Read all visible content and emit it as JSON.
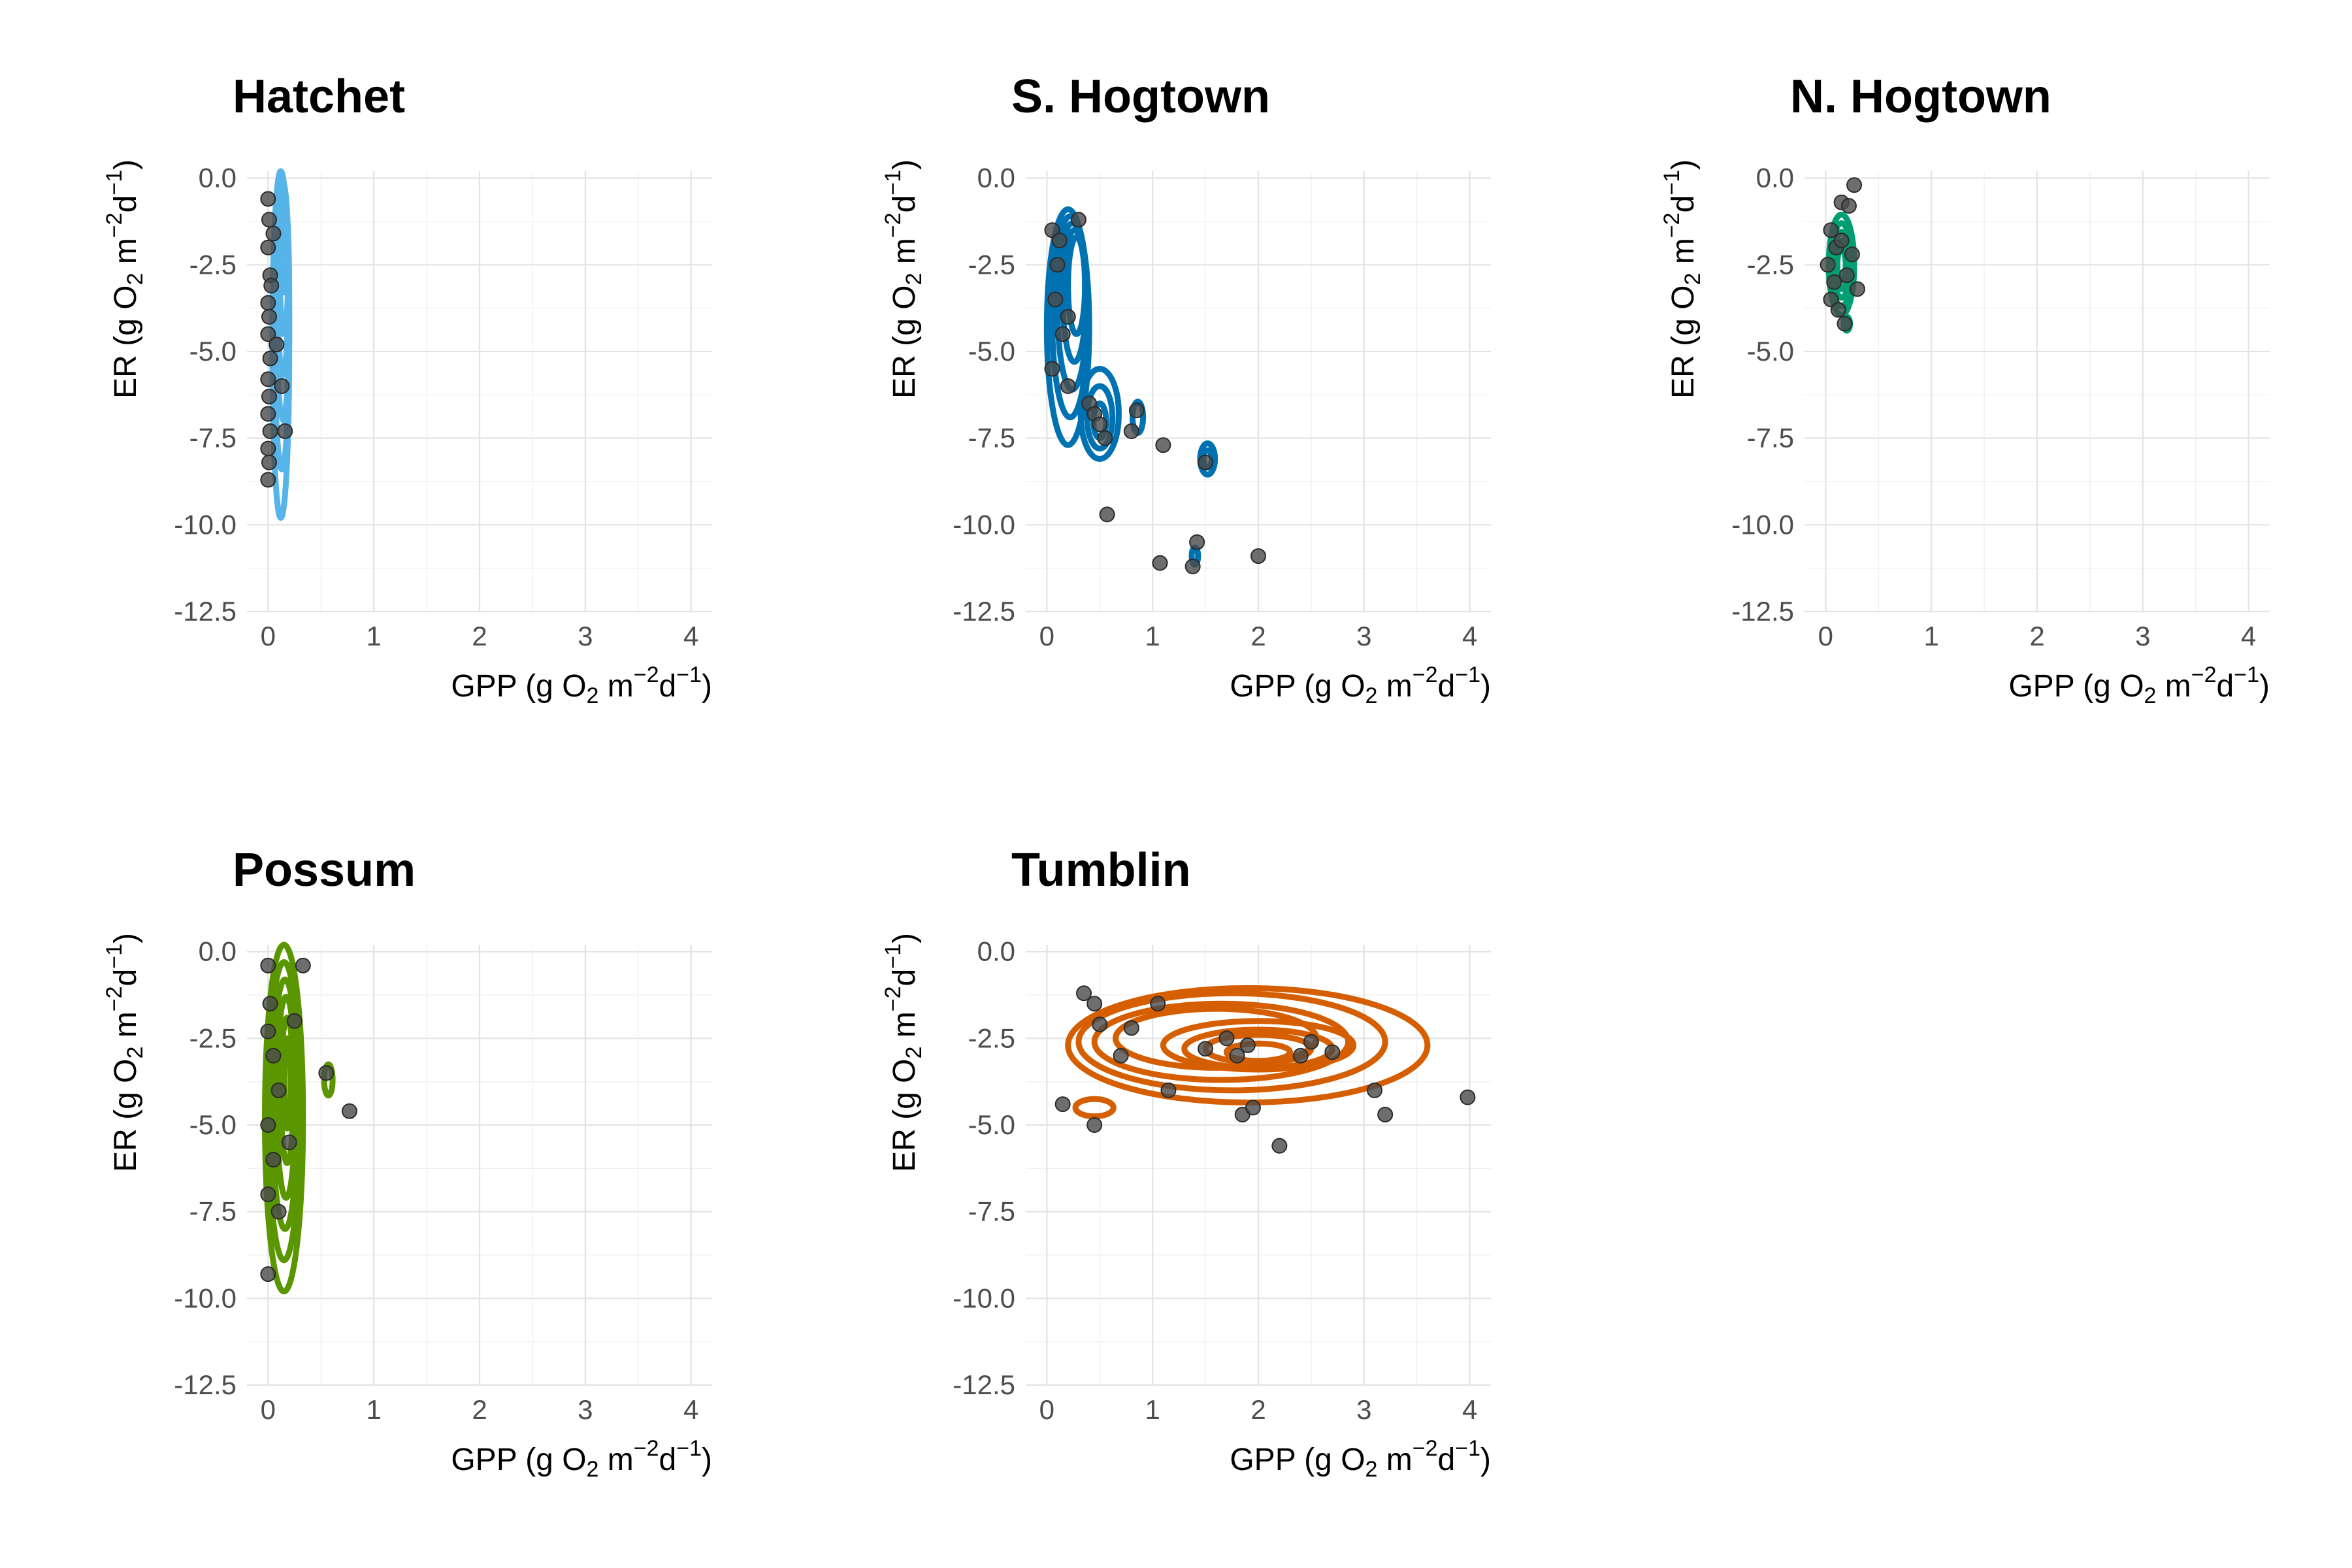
{
  "chart_data": [
    {
      "type": "scatter",
      "title": "Hatchet",
      "xlabel": {
        "main": "GPP (g O",
        "sub": "2",
        "unit": " m",
        "sup1": "−2",
        "mid": "d",
        "sup2": "−1",
        "end": ")"
      },
      "ylabel": {
        "main": "ER (g O",
        "sub": "2",
        "unit": " m",
        "sup1": "−2",
        "mid": "d",
        "sup2": "−1",
        "end": ")"
      },
      "xlim": [
        -0.2,
        4.2
      ],
      "ylim": [
        -12.5,
        0.2
      ],
      "xticks": [
        0,
        1,
        2,
        3,
        4
      ],
      "xticklabels": [
        "0",
        "1",
        "2",
        "3",
        "4"
      ],
      "yticks": [
        0,
        -2.5,
        -5,
        -7.5,
        -10,
        -12.5
      ],
      "yticklabels": [
        "0.0",
        "-2.5",
        "-5.0",
        "-7.5",
        "-10.0",
        "-12.5"
      ],
      "grid": true,
      "legend": "none",
      "color": "#56B4E9",
      "points": [
        [
          0.0,
          -0.6
        ],
        [
          0.01,
          -1.2
        ],
        [
          0.0,
          -2.0
        ],
        [
          0.02,
          -2.8
        ],
        [
          0.0,
          -3.6
        ],
        [
          0.01,
          -4.0
        ],
        [
          0.0,
          -4.5
        ],
        [
          0.02,
          -5.2
        ],
        [
          0.0,
          -5.8
        ],
        [
          0.01,
          -6.3
        ],
        [
          0.0,
          -6.8
        ],
        [
          0.02,
          -7.3
        ],
        [
          0.0,
          -7.8
        ],
        [
          0.01,
          -8.2
        ],
        [
          0.0,
          -8.7
        ],
        [
          0.03,
          -3.1
        ],
        [
          0.05,
          -1.6
        ],
        [
          0.16,
          -7.3
        ],
        [
          0.13,
          -6.0
        ],
        [
          0.08,
          -4.8
        ]
      ],
      "contours": [
        {
          "cx": 0.12,
          "cy": -4.8,
          "rx": 0.08,
          "ry": 5.0
        },
        {
          "cx": 0.13,
          "cy": -4.2,
          "rx": 0.07,
          "ry": 4.2
        },
        {
          "cx": 0.14,
          "cy": -3.6,
          "rx": 0.06,
          "ry": 3.4
        },
        {
          "cx": 0.14,
          "cy": -3.0,
          "rx": 0.05,
          "ry": 2.7
        },
        {
          "cx": 0.15,
          "cy": -2.4,
          "rx": 0.04,
          "ry": 2.1
        },
        {
          "cx": 0.15,
          "cy": -1.8,
          "rx": 0.03,
          "ry": 1.5
        },
        {
          "cx": 0.15,
          "cy": -1.2,
          "rx": 0.02,
          "ry": 1.0
        }
      ]
    },
    {
      "type": "scatter",
      "title": "S. Hogtown",
      "xlabel": {
        "main": "GPP (g O",
        "sub": "2",
        "unit": " m",
        "sup1": "−2",
        "mid": "d",
        "sup2": "−1",
        "end": ")"
      },
      "ylabel": {
        "main": "ER (g O",
        "sub": "2",
        "unit": " m",
        "sup1": "−2",
        "mid": "d",
        "sup2": "−1",
        "end": ")"
      },
      "xlim": [
        -0.2,
        4.2
      ],
      "ylim": [
        -12.5,
        0.2
      ],
      "xticks": [
        0,
        1,
        2,
        3,
        4
      ],
      "xticklabels": [
        "0",
        "1",
        "2",
        "3",
        "4"
      ],
      "yticks": [
        0,
        -2.5,
        -5,
        -7.5,
        -10,
        -12.5
      ],
      "yticklabels": [
        "0.0",
        "-2.5",
        "-5.0",
        "-7.5",
        "-10.0",
        "-12.5"
      ],
      "grid": true,
      "legend": "none",
      "color": "#0072B2",
      "points": [
        [
          0.05,
          -1.5
        ],
        [
          0.1,
          -2.5
        ],
        [
          0.08,
          -3.5
        ],
        [
          0.15,
          -4.5
        ],
        [
          0.05,
          -5.5
        ],
        [
          0.2,
          -6.0
        ],
        [
          0.3,
          -1.2
        ],
        [
          0.4,
          -6.5
        ],
        [
          0.45,
          -6.8
        ],
        [
          0.5,
          -7.1
        ],
        [
          0.55,
          -7.5
        ],
        [
          0.85,
          -6.7
        ],
        [
          0.8,
          -7.3
        ],
        [
          1.1,
          -7.7
        ],
        [
          1.5,
          -8.2
        ],
        [
          0.57,
          -9.7
        ],
        [
          1.07,
          -11.1
        ],
        [
          1.38,
          -11.2
        ],
        [
          1.42,
          -10.5
        ],
        [
          2.0,
          -10.9
        ],
        [
          0.12,
          -1.8
        ],
        [
          0.2,
          -4.0
        ]
      ],
      "contours": [
        {
          "cx": 0.2,
          "cy": -4.3,
          "rx": 0.2,
          "ry": 3.4
        },
        {
          "cx": 0.22,
          "cy": -4.0,
          "rx": 0.17,
          "ry": 2.9
        },
        {
          "cx": 0.24,
          "cy": -3.7,
          "rx": 0.14,
          "ry": 2.4
        },
        {
          "cx": 0.26,
          "cy": -3.4,
          "rx": 0.11,
          "ry": 1.9
        },
        {
          "cx": 0.28,
          "cy": -3.1,
          "rx": 0.08,
          "ry": 1.4
        },
        {
          "cx": 0.5,
          "cy": -6.8,
          "rx": 0.18,
          "ry": 1.3
        },
        {
          "cx": 0.5,
          "cy": -6.9,
          "rx": 0.12,
          "ry": 0.9
        },
        {
          "cx": 0.5,
          "cy": -7.0,
          "rx": 0.06,
          "ry": 0.5
        },
        {
          "cx": 0.86,
          "cy": -6.9,
          "rx": 0.05,
          "ry": 0.45
        },
        {
          "cx": 1.52,
          "cy": -8.1,
          "rx": 0.07,
          "ry": 0.45
        },
        {
          "cx": 1.52,
          "cy": -8.1,
          "rx": 0.04,
          "ry": 0.25
        },
        {
          "cx": 1.4,
          "cy": -10.9,
          "rx": 0.03,
          "ry": 0.25
        }
      ]
    },
    {
      "type": "scatter",
      "title": "N. Hogtown",
      "xlabel": {
        "main": "GPP (g O",
        "sub": "2",
        "unit": " m",
        "sup1": "−2",
        "mid": "d",
        "sup2": "−1",
        "end": ")"
      },
      "ylabel": {
        "main": "ER (g O",
        "sub": "2",
        "unit": " m",
        "sup1": "−2",
        "mid": "d",
        "sup2": "−1",
        "end": ")"
      },
      "xlim": [
        -0.2,
        4.2
      ],
      "ylim": [
        -12.5,
        0.2
      ],
      "xticks": [
        0,
        1,
        2,
        3,
        4
      ],
      "xticklabels": [
        "0",
        "1",
        "2",
        "3",
        "4"
      ],
      "yticks": [
        0,
        -2.5,
        -5,
        -7.5,
        -10,
        -12.5
      ],
      "yticklabels": [
        "0.0",
        "-2.5",
        "-5.0",
        "-7.5",
        "-10.0",
        "-12.5"
      ],
      "grid": true,
      "legend": "none",
      "color": "#009E73",
      "points": [
        [
          0.27,
          -0.2
        ],
        [
          0.15,
          -0.7
        ],
        [
          0.22,
          -0.8
        ],
        [
          0.05,
          -1.5
        ],
        [
          0.1,
          -2.0
        ],
        [
          0.02,
          -2.5
        ],
        [
          0.08,
          -3.0
        ],
        [
          0.3,
          -3.2
        ],
        [
          0.05,
          -3.5
        ],
        [
          0.15,
          -1.8
        ],
        [
          0.2,
          -2.8
        ],
        [
          0.25,
          -2.2
        ],
        [
          0.18,
          -4.2
        ],
        [
          0.12,
          -3.8
        ]
      ],
      "contours": [
        {
          "cx": 0.15,
          "cy": -2.5,
          "rx": 0.12,
          "ry": 1.45
        },
        {
          "cx": 0.15,
          "cy": -2.5,
          "rx": 0.1,
          "ry": 1.2
        },
        {
          "cx": 0.15,
          "cy": -2.5,
          "rx": 0.08,
          "ry": 0.95
        },
        {
          "cx": 0.15,
          "cy": -2.5,
          "rx": 0.06,
          "ry": 0.7
        },
        {
          "cx": 0.15,
          "cy": -2.5,
          "rx": 0.04,
          "ry": 0.45
        },
        {
          "cx": 0.2,
          "cy": -4.2,
          "rx": 0.03,
          "ry": 0.2
        }
      ]
    },
    {
      "type": "scatter",
      "title": "Possum",
      "xlabel": {
        "main": "GPP (g O",
        "sub": "2",
        "unit": " m",
        "sup1": "−2",
        "mid": "d",
        "sup2": "−1",
        "end": ")"
      },
      "ylabel": {
        "main": "ER (g O",
        "sub": "2",
        "unit": " m",
        "sup1": "−2",
        "mid": "d",
        "sup2": "−1",
        "end": ")"
      },
      "xlim": [
        -0.2,
        4.2
      ],
      "ylim": [
        -12.5,
        0.2
      ],
      "xticks": [
        0,
        1,
        2,
        3,
        4
      ],
      "xticklabels": [
        "0",
        "1",
        "2",
        "3",
        "4"
      ],
      "yticks": [
        0,
        -2.5,
        -5,
        -7.5,
        -10,
        -12.5
      ],
      "yticklabels": [
        "0.0",
        "-2.5",
        "-5.0",
        "-7.5",
        "-10.0",
        "-12.5"
      ],
      "grid": true,
      "legend": "none",
      "color": "#5A9600",
      "points": [
        [
          0.0,
          -0.4
        ],
        [
          0.33,
          -0.4
        ],
        [
          0.02,
          -1.5
        ],
        [
          0.0,
          -2.3
        ],
        [
          0.05,
          -3.0
        ],
        [
          0.1,
          -4.0
        ],
        [
          0.0,
          -5.0
        ],
        [
          0.05,
          -6.0
        ],
        [
          0.0,
          -7.0
        ],
        [
          0.1,
          -7.5
        ],
        [
          0.0,
          -9.3
        ],
        [
          0.2,
          -5.5
        ],
        [
          0.77,
          -4.6
        ],
        [
          0.55,
          -3.5
        ],
        [
          0.25,
          -2.0
        ]
      ],
      "contours": [
        {
          "cx": 0.15,
          "cy": -4.8,
          "rx": 0.18,
          "ry": 5.0
        },
        {
          "cx": 0.15,
          "cy": -4.6,
          "rx": 0.15,
          "ry": 4.3
        },
        {
          "cx": 0.16,
          "cy": -4.4,
          "rx": 0.12,
          "ry": 3.6
        },
        {
          "cx": 0.17,
          "cy": -4.2,
          "rx": 0.09,
          "ry": 2.9
        },
        {
          "cx": 0.18,
          "cy": -4.0,
          "rx": 0.06,
          "ry": 2.1
        },
        {
          "cx": 0.18,
          "cy": -3.8,
          "rx": 0.03,
          "ry": 1.3
        },
        {
          "cx": 0.57,
          "cy": -3.7,
          "rx": 0.04,
          "ry": 0.45
        }
      ]
    },
    {
      "type": "scatter",
      "title": "Tumblin",
      "xlabel": {
        "main": "GPP (g O",
        "sub": "2",
        "unit": " m",
        "sup1": "−2",
        "mid": "d",
        "sup2": "−1",
        "end": ")"
      },
      "ylabel": {
        "main": "ER (g O",
        "sub": "2",
        "unit": " m",
        "sup1": "−2",
        "mid": "d",
        "sup2": "−1",
        "end": ")"
      },
      "xlim": [
        -0.2,
        4.2
      ],
      "ylim": [
        -12.5,
        0.2
      ],
      "xticks": [
        0,
        1,
        2,
        3,
        4
      ],
      "xticklabels": [
        "0",
        "1",
        "2",
        "3",
        "4"
      ],
      "yticks": [
        0,
        -2.5,
        -5,
        -7.5,
        -10,
        -12.5
      ],
      "yticklabels": [
        "0.0",
        "-2.5",
        "-5.0",
        "-7.5",
        "-10.0",
        "-12.5"
      ],
      "grid": true,
      "legend": "none",
      "color": "#D55E00",
      "points": [
        [
          0.15,
          -4.4
        ],
        [
          0.35,
          -1.2
        ],
        [
          0.45,
          -1.5
        ],
        [
          0.5,
          -2.1
        ],
        [
          0.45,
          -5.0
        ],
        [
          0.8,
          -2.2
        ],
        [
          0.7,
          -3.0
        ],
        [
          1.05,
          -1.5
        ],
        [
          1.15,
          -4.0
        ],
        [
          1.5,
          -2.8
        ],
        [
          1.7,
          -2.5
        ],
        [
          1.8,
          -3.0
        ],
        [
          1.9,
          -2.7
        ],
        [
          1.85,
          -4.7
        ],
        [
          1.95,
          -4.5
        ],
        [
          2.2,
          -5.6
        ],
        [
          2.4,
          -3.0
        ],
        [
          2.5,
          -2.6
        ],
        [
          3.1,
          -4.0
        ],
        [
          3.2,
          -4.7
        ],
        [
          3.98,
          -4.2
        ],
        [
          2.7,
          -2.9
        ]
      ],
      "contours": [
        {
          "cx": 1.9,
          "cy": -2.7,
          "rx": 1.7,
          "ry": 1.65
        },
        {
          "cx": 1.75,
          "cy": -2.6,
          "rx": 1.45,
          "ry": 1.4
        },
        {
          "cx": 1.65,
          "cy": -2.6,
          "rx": 1.2,
          "ry": 1.1
        },
        {
          "cx": 1.6,
          "cy": -2.5,
          "rx": 0.95,
          "ry": 0.85
        },
        {
          "cx": 2.0,
          "cy": -2.7,
          "rx": 0.9,
          "ry": 0.7
        },
        {
          "cx": 2.0,
          "cy": -2.8,
          "rx": 0.7,
          "ry": 0.55
        },
        {
          "cx": 2.0,
          "cy": -2.8,
          "rx": 0.5,
          "ry": 0.4
        },
        {
          "cx": 2.0,
          "cy": -2.9,
          "rx": 0.3,
          "ry": 0.25
        },
        {
          "cx": 0.45,
          "cy": -4.5,
          "rx": 0.18,
          "ry": 0.25
        }
      ]
    }
  ]
}
